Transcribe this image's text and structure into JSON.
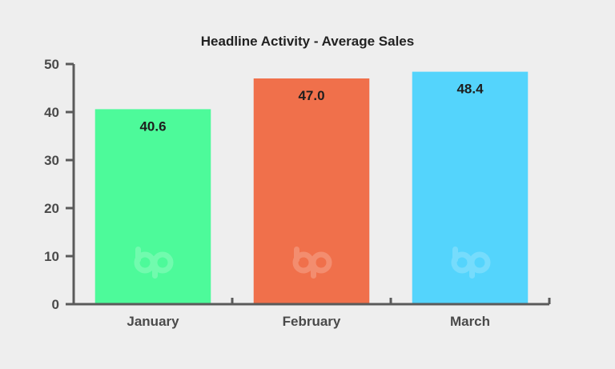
{
  "chart_data": {
    "type": "bar",
    "title": "Headline Activity - Average Sales",
    "xlabel": "",
    "ylabel": "",
    "categories": [
      "January",
      "February",
      "March"
    ],
    "values": [
      40.6,
      47.0,
      48.4
    ],
    "data_labels": [
      "40.6",
      "47.0",
      "48.4"
    ],
    "colors": [
      "#4dfa9a",
      "#f0704b",
      "#54d4fc"
    ],
    "ylim": [
      0,
      50
    ],
    "yticks": [
      0,
      10,
      20,
      30,
      40,
      50
    ],
    "grid": false,
    "legend": "none",
    "axis_color": "#5a5a5a",
    "watermark_icon": "bp-logo-icon"
  }
}
